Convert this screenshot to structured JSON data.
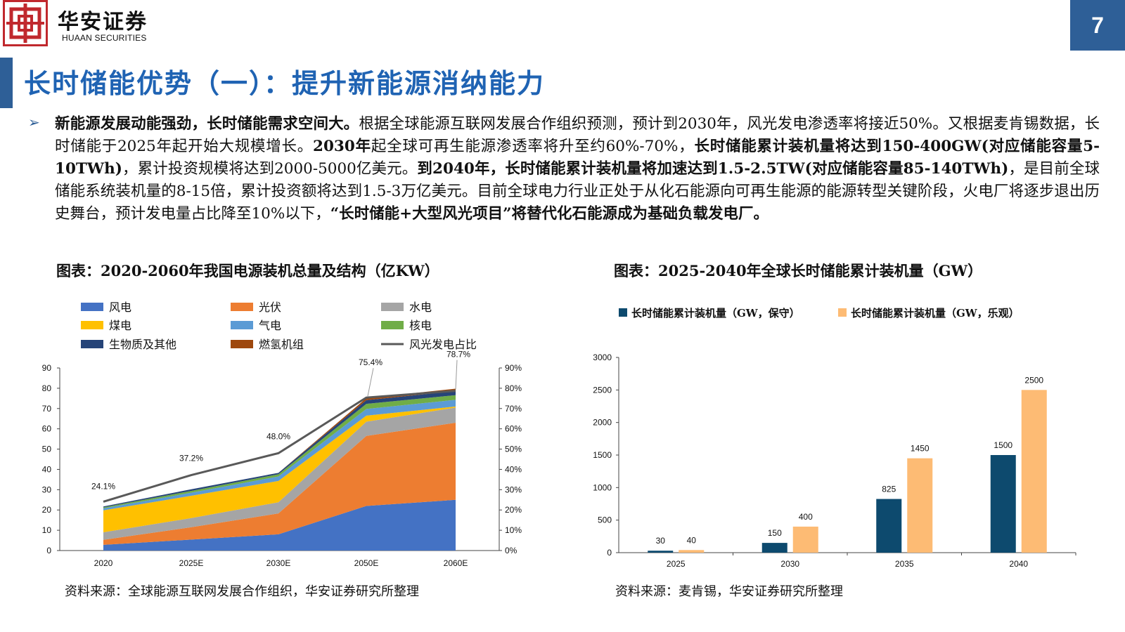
{
  "header": {
    "brand_cn": "华安证券",
    "brand_en": "HUAAN SECURITIES",
    "page_number": "7"
  },
  "title": "长时储能优势（一）：提升新能源消纳能力",
  "paragraph": {
    "bullet": "➢",
    "parts": [
      {
        "bold": true,
        "text": "新能源发展动能强劲，长时储能需求空间大。"
      },
      {
        "bold": false,
        "text": "根据全球能源互联网发展合作组织预测，预计到2030年，风光发电渗透率将接近50%。又根据麦肯锡数据，长时储能于2025年起开始大规模增长。"
      },
      {
        "bold": true,
        "text": "2030年"
      },
      {
        "bold": false,
        "text": "起全球可再生能源渗透率将升至约60%-70%，"
      },
      {
        "bold": true,
        "text": "长时储能累计装机量将达到150-400GW(对应储能容量5-10TWh)"
      },
      {
        "bold": false,
        "text": "，累计投资规模将达到2000-5000亿美元。"
      },
      {
        "bold": true,
        "text": "到2040年，长时储能累计装机量将加速达到1.5-2.5TW(对应储能容量85-140TWh)"
      },
      {
        "bold": false,
        "text": "，是目前全球储能系统装机量的8-15倍，累计投资额将达到1.5-3万亿美元。目前全球电力行业正处于从化石能源向可再生能源的能源转型关键阶段，火电厂将逐步退出历史舞台，预计发电量占比降至10%以下，"
      },
      {
        "bold": true,
        "text": "“长时储能+大型风光项目”将替代化石能源成为基础负载发电厂。"
      }
    ]
  },
  "left_chart": {
    "caption": "图表：2020-2060年我国电源装机总量及结构（亿KW）",
    "source": "资料来源：全球能源互联网发展合作组织，华安证券研究所整理"
  },
  "right_chart": {
    "caption": "图表：2025-2040年全球长时储能累计装机量（GW）",
    "source": "资料来源：麦肯锡，华安证券研究所整理"
  },
  "chart_data": [
    {
      "type": "area",
      "categories": [
        "2020",
        "2025E",
        "2030E",
        "2050E",
        "2060E"
      ],
      "ylim": [
        0,
        90
      ],
      "yticks": [
        "0",
        "10",
        "20",
        "30",
        "40",
        "50",
        "60",
        "70",
        "80",
        "90"
      ],
      "y2lim": [
        0,
        90
      ],
      "y2ticks": [
        "0%",
        "10%",
        "20%",
        "30%",
        "40%",
        "50%",
        "60%",
        "70%",
        "80%",
        "90%"
      ],
      "stack_order": [
        "风电",
        "光伏",
        "水电",
        "煤电",
        "气电",
        "核电",
        "生物质及其他",
        "燃氢机组"
      ],
      "series": [
        {
          "name": "风电",
          "color": "#4472c4",
          "values": [
            2.8,
            5.4,
            8.0,
            22.0,
            25.0
          ]
        },
        {
          "name": "光伏",
          "color": "#ed7d31",
          "values": [
            2.5,
            6.1,
            10.3,
            34.5,
            38.0
          ]
        },
        {
          "name": "水电",
          "color": "#a5a5a5",
          "values": [
            3.7,
            4.5,
            5.5,
            7.0,
            7.5
          ]
        },
        {
          "name": "煤电",
          "color": "#ffc000",
          "values": [
            10.8,
            11.0,
            10.5,
            3.0,
            0.5
          ]
        },
        {
          "name": "气电",
          "color": "#5b9bd5",
          "values": [
            1.0,
            1.5,
            2.2,
            3.3,
            3.3
          ]
        },
        {
          "name": "核电",
          "color": "#70ad47",
          "values": [
            0.5,
            0.9,
            1.1,
            2.5,
            2.3
          ]
        },
        {
          "name": "生物质及其他",
          "color": "#264478",
          "values": [
            0.4,
            0.8,
            0.7,
            1.8,
            2.0
          ]
        },
        {
          "name": "燃氢机组",
          "color": "#9e480e",
          "values": [
            0.0,
            0.0,
            0.0,
            1.0,
            1.2
          ]
        }
      ],
      "line": {
        "name": "风光发电占比",
        "color": "#595959",
        "values": [
          24.1,
          37.2,
          48.0,
          75.4,
          78.7
        ],
        "labels": [
          "24.1%",
          "37.2%",
          "48.0%",
          "75.4%",
          "78.7%"
        ]
      },
      "legend": [
        "风电",
        "光伏",
        "水电",
        "煤电",
        "气电",
        "核电",
        "生物质及其他",
        "燃氢机组",
        "风光发电占比"
      ]
    },
    {
      "type": "bar",
      "categories": [
        "2025",
        "2030",
        "2035",
        "2040"
      ],
      "ylim": [
        0,
        3000
      ],
      "yticks": [
        "0",
        "500",
        "1000",
        "1500",
        "2000",
        "2500",
        "3000"
      ],
      "series": [
        {
          "name": "长时储能累计装机量（GW，保守）",
          "color": "#0d4a6e",
          "values": [
            30,
            150,
            825,
            1500
          ],
          "labels": [
            "30",
            "150",
            "825",
            "1500"
          ]
        },
        {
          "name": "长时储能累计装机量（GW，乐观）",
          "color": "#fdbb74",
          "values": [
            40,
            400,
            1450,
            2500
          ],
          "labels": [
            "40",
            "400",
            "1450",
            "2500"
          ]
        }
      ]
    }
  ]
}
